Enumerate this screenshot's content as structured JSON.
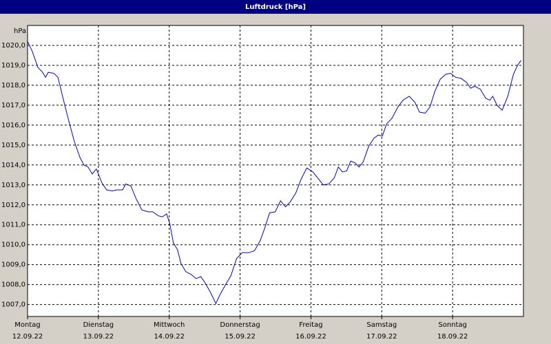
{
  "chart_data": {
    "type": "line",
    "title": "Luftdruck [hPa]",
    "y_label": "hPa",
    "color": "#0000cc",
    "grid": true,
    "xlim": [
      0,
      168
    ],
    "xticks": [
      {
        "value": 0,
        "label": "Montag",
        "date": "12.09.22"
      },
      {
        "value": 24,
        "label": "Dienstag",
        "date": "13.09.22"
      },
      {
        "value": 48,
        "label": "Mittwoch",
        "date": "14.09.22"
      },
      {
        "value": 72,
        "label": "Donnerstag",
        "date": "15.09.22"
      },
      {
        "value": 96,
        "label": "Freitag",
        "date": "16.09.22"
      },
      {
        "value": 120,
        "label": "Samstag",
        "date": "17.09.22"
      },
      {
        "value": 144,
        "label": "Sonntag",
        "date": "18.09.22"
      }
    ],
    "ylim": [
      1006.4,
      1021
    ],
    "yticks": [
      {
        "value": 1007,
        "label": "1007,0"
      },
      {
        "value": 1008,
        "label": "1008,0"
      },
      {
        "value": 1009,
        "label": "1009,0"
      },
      {
        "value": 1010,
        "label": "1010,0"
      },
      {
        "value": 1011,
        "label": "1011,0"
      },
      {
        "value": 1012,
        "label": "1012,0"
      },
      {
        "value": 1013,
        "label": "1013,0"
      },
      {
        "value": 1014,
        "label": "1014,0"
      },
      {
        "value": 1015,
        "label": "1015,0"
      },
      {
        "value": 1016,
        "label": "1016,0"
      },
      {
        "value": 1017,
        "label": "1017,0"
      },
      {
        "value": 1018,
        "label": "1018,0"
      },
      {
        "value": 1019,
        "label": "1019,0"
      },
      {
        "value": 1020,
        "label": "1020,0"
      }
    ],
    "x": [
      0,
      1.6,
      3.5,
      5.1,
      6.1,
      7,
      8.9,
      10.3,
      12.1,
      14,
      15.8,
      17.7,
      19.1,
      20.5,
      21.9,
      23.3,
      25.2,
      26.8,
      28.7,
      30.3,
      32.2,
      33.3,
      35,
      36.8,
      38.7,
      40.8,
      42.4,
      44.3,
      45.7,
      47.1,
      48.2,
      49.4,
      50.8,
      52,
      53.6,
      55.5,
      57.1,
      58.7,
      60.1,
      62,
      63.8,
      65.2,
      67.1,
      68.9,
      70.8,
      72.7,
      75,
      76.9,
      78.8,
      80.4,
      82,
      83.9,
      85.7,
      87.4,
      89,
      90.9,
      92.7,
      94.6,
      96.7,
      98.3,
      100.2,
      102.1,
      103.9,
      105.3,
      106.7,
      108.1,
      109.5,
      111,
      112.3,
      113.7,
      115.6,
      117.4,
      118.8,
      120.2,
      121.6,
      123.5,
      125.4,
      127.2,
      129.3,
      131.2,
      132.8,
      134.7,
      136.3,
      138,
      139.8,
      141.7,
      143.3,
      145,
      146.8,
      148.7,
      150.1,
      151.5,
      153.4,
      155.2,
      156.6,
      157.6,
      159,
      160.8,
      162.7,
      164.6,
      166,
      167.2
    ],
    "values": [
      1020.2,
      1019.7,
      1018.9,
      1018.65,
      1018.4,
      1018.65,
      1018.6,
      1018.4,
      1017.3,
      1016.2,
      1015.2,
      1014.4,
      1014.0,
      1013.9,
      1013.55,
      1013.8,
      1013.1,
      1012.75,
      1012.7,
      1012.75,
      1012.75,
      1013.05,
      1012.95,
      1012.3,
      1011.75,
      1011.65,
      1011.65,
      1011.45,
      1011.4,
      1011.55,
      1011.05,
      1010.1,
      1009.75,
      1009.05,
      1008.65,
      1008.5,
      1008.3,
      1008.4,
      1008.1,
      1007.6,
      1007.05,
      1007.5,
      1008.0,
      1008.45,
      1009.3,
      1009.6,
      1009.6,
      1009.7,
      1010.2,
      1010.85,
      1011.6,
      1011.65,
      1012.2,
      1011.9,
      1012.15,
      1012.6,
      1013.3,
      1013.85,
      1013.65,
      1013.35,
      1013.0,
      1013.05,
      1013.35,
      1013.9,
      1013.65,
      1013.7,
      1014.2,
      1014.1,
      1013.9,
      1014.15,
      1014.95,
      1015.35,
      1015.5,
      1015.45,
      1016.05,
      1016.35,
      1016.9,
      1017.25,
      1017.45,
      1017.15,
      1016.65,
      1016.6,
      1016.9,
      1017.7,
      1018.3,
      1018.55,
      1018.6,
      1018.4,
      1018.35,
      1018.15,
      1017.85,
      1017.95,
      1017.8,
      1017.35,
      1017.25,
      1017.45,
      1017.0,
      1016.75,
      1017.45,
      1018.55,
      1019.0,
      1019.25
    ]
  }
}
